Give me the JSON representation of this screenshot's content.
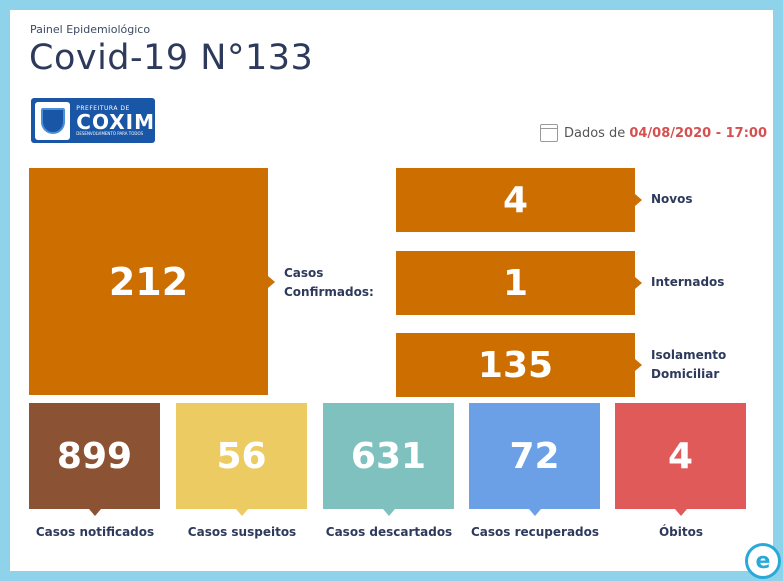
{
  "header": {
    "subtitle": "Painel Epidemiológico",
    "title": "Covid-19 N°133",
    "logo": {
      "line1": "PREFEITURA DE",
      "line2": "COXIM",
      "line3": "DESENVOLVIMENTO PARA TODOS"
    },
    "date_prefix": "Dados de",
    "date_value": "04/08/2020 - 17:00"
  },
  "confirmed": {
    "value": "212",
    "label_line1": "Casos",
    "label_line2": "Confirmados:"
  },
  "breakdown": [
    {
      "value": "4",
      "label_line1": "Novos",
      "label_line2": ""
    },
    {
      "value": "1",
      "label_line1": "Internados",
      "label_line2": ""
    },
    {
      "value": "135",
      "label_line1": "Isolamento",
      "label_line2": "Domiciliar"
    }
  ],
  "stats": [
    {
      "value": "899",
      "label": "Casos notificados",
      "color": "#8b5234"
    },
    {
      "value": "56",
      "label": "Casos suspeitos",
      "color": "#eccb62"
    },
    {
      "value": "631",
      "label": "Casos descartados",
      "color": "#7fc1bf"
    },
    {
      "value": "72",
      "label": "Casos recuperados",
      "color": "#6b9fe6"
    },
    {
      "value": "4",
      "label": "Óbitos",
      "color": "#e05a5a"
    }
  ],
  "colors": {
    "orange": "#cc6e00",
    "background": "#8fd3ea",
    "title": "#2e3a5c",
    "date_highlight": "#d55050"
  },
  "icons": {
    "calendar": "calendar-icon",
    "brand": "e-logo-icon"
  }
}
